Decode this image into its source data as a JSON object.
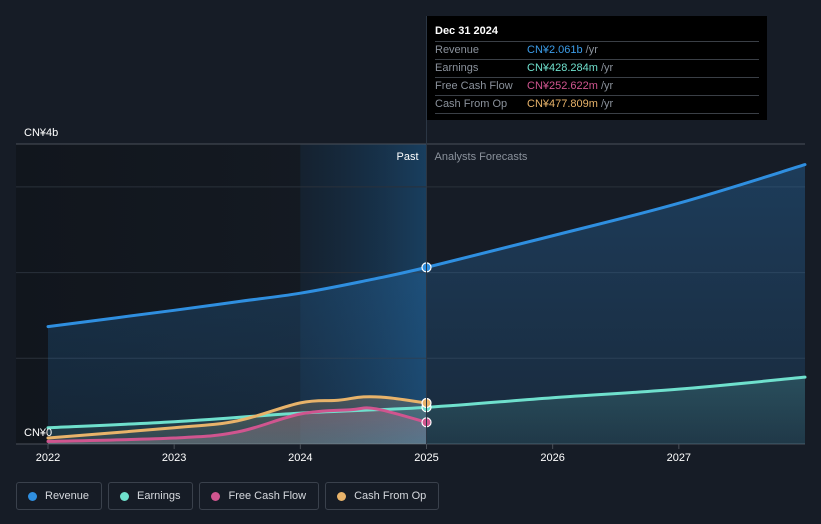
{
  "tooltip": {
    "date": "Dec 31 2024",
    "rows": [
      {
        "name": "Revenue",
        "value": "CN¥2.061b",
        "unit": "/yr",
        "color": "#3b9ce8"
      },
      {
        "name": "Earnings",
        "value": "CN¥428.284m",
        "unit": "/yr",
        "color": "#6fe0cd"
      },
      {
        "name": "Free Cash Flow",
        "value": "CN¥252.622m",
        "unit": "/yr",
        "color": "#d0558f"
      },
      {
        "name": "Cash From Op",
        "value": "CN¥477.809m",
        "unit": "/yr",
        "color": "#e8b36a"
      }
    ]
  },
  "legend": [
    {
      "label": "Revenue",
      "color": "#2f8fe0"
    },
    {
      "label": "Earnings",
      "color": "#6fe0cd"
    },
    {
      "label": "Free Cash Flow",
      "color": "#d0558f"
    },
    {
      "label": "Cash From Op",
      "color": "#e8b36a"
    }
  ],
  "chart_data": {
    "type": "line",
    "title": "",
    "xlabel": "",
    "ylabel": "",
    "y_top_label": "CN¥4b",
    "y_bottom_label": "CN¥0",
    "ylim": [
      0,
      3.5
    ],
    "xlim": [
      2022,
      2028
    ],
    "grid": true,
    "gridlines_b": [
      1,
      2,
      3
    ],
    "x_ticks": [
      "2022",
      "2023",
      "2024",
      "2025",
      "2026",
      "2027"
    ],
    "x_tick_values": [
      2022,
      2023,
      2024,
      2025,
      2026,
      2027
    ],
    "divider_x": 2025,
    "past_label": "Past",
    "forecast_label": "Analysts Forecasts",
    "units": "CN¥ billions",
    "series": [
      {
        "name": "Revenue",
        "color": "#2f8fe0",
        "fill": true,
        "x": [
          2022,
          2023,
          2023.5,
          2024,
          2024.5,
          2025,
          2026,
          2027,
          2028
        ],
        "values": [
          1.37,
          1.56,
          1.66,
          1.76,
          1.9,
          2.061,
          2.43,
          2.81,
          3.26
        ]
      },
      {
        "name": "Earnings",
        "color": "#6fe0cd",
        "fill": true,
        "x": [
          2022,
          2023,
          2024,
          2025,
          2026,
          2027,
          2028
        ],
        "values": [
          0.19,
          0.26,
          0.36,
          0.428,
          0.54,
          0.64,
          0.78
        ]
      },
      {
        "name": "Free Cash Flow",
        "color": "#d0558f",
        "fill": true,
        "x": [
          2022,
          2023,
          2023.5,
          2024,
          2024.4,
          2024.6,
          2025
        ],
        "values": [
          0.03,
          0.07,
          0.14,
          0.35,
          0.4,
          0.41,
          0.253
        ]
      },
      {
        "name": "Cash From Op",
        "color": "#e8b36a",
        "fill": true,
        "x": [
          2022,
          2023,
          2023.5,
          2024,
          2024.3,
          2024.5,
          2024.7,
          2025
        ],
        "values": [
          0.07,
          0.19,
          0.27,
          0.48,
          0.51,
          0.55,
          0.54,
          0.478
        ]
      }
    ],
    "highlight_x": 2025
  }
}
